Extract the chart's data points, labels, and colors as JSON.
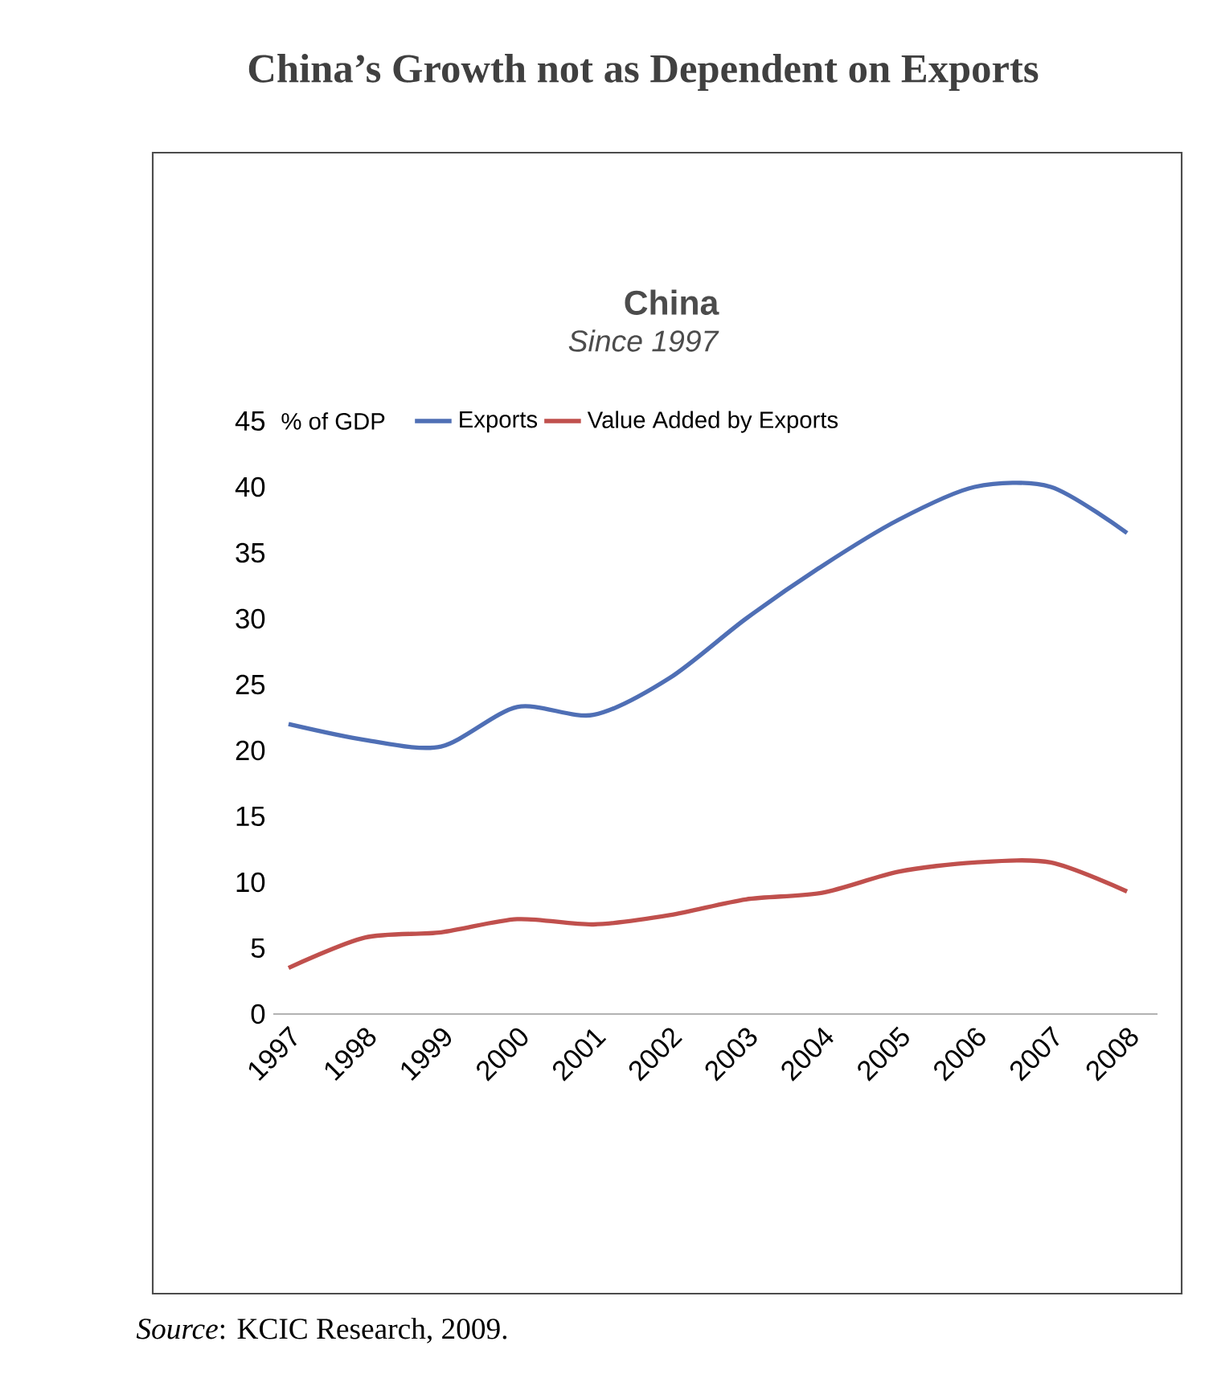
{
  "chart_data": {
    "type": "line",
    "title": "China",
    "subtitle": "Since 1997",
    "annotations": [
      "China’s Growth not as Dependent on Exports",
      "*Source*: KCIC Research, 2009."
    ],
    "ylabel": "% of GDP",
    "categories": [
      "1997",
      "1998",
      "1999",
      "2000",
      "2001",
      "2002",
      "2003",
      "2004",
      "2005",
      "2006",
      "2007",
      "2008"
    ],
    "series": [
      {
        "name": "Exports",
        "color": "#4f6fb5",
        "values": [
          22,
          20.8,
          20.3,
          23.3,
          22.7,
          25.5,
          30,
          34,
          37.5,
          40,
          40,
          36.5
        ]
      },
      {
        "name": "Value Added by Exports",
        "color": "#c0504d",
        "values": [
          3.5,
          5.8,
          6.2,
          7.2,
          6.8,
          7.5,
          8.7,
          9.2,
          10.8,
          11.5,
          11.5,
          9.3
        ]
      }
    ],
    "ylim": [
      0,
      45
    ],
    "yticks": [
      0,
      5,
      10,
      15,
      20,
      25,
      30,
      35,
      40,
      45
    ],
    "grid": false,
    "legend": "top",
    "marker": "none",
    "line_style": "solid"
  }
}
